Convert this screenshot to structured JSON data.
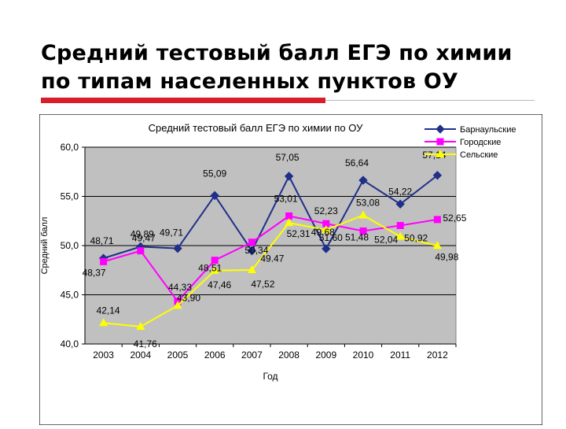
{
  "slide": {
    "title_line1": "Средний тестовый балл ЕГЭ по химии",
    "title_line2": "по типам населенных пунктов ОУ",
    "accent_color": "#d81e2a"
  },
  "chart_data": {
    "type": "line",
    "title": "Средний тестовый балл ЕГЭ по химии по ОУ",
    "xlabel": "Год",
    "ylabel": "Средний балл",
    "categories": [
      "2003",
      "2004",
      "2005",
      "2006",
      "2007",
      "2008",
      "2009",
      "2010",
      "2011",
      "2012"
    ],
    "ylim": [
      40,
      60
    ],
    "yticks": [
      40,
      45,
      50,
      55,
      60
    ],
    "ytick_labels": [
      "40,0",
      "45,0",
      "50,0",
      "55,0",
      "60,0"
    ],
    "grid": "horizontal",
    "plot_background": "#c0c0c0",
    "legend_position": "top-right",
    "series": [
      {
        "name": "Барнаульские",
        "color": "#1f2f8a",
        "marker": "diamond",
        "values": [
          48.71,
          49.89,
          49.71,
          55.09,
          49.47,
          57.05,
          49.68,
          56.64,
          54.22,
          57.14
        ],
        "labels": [
          "48,71",
          "49,89",
          "49,71",
          "55,09",
          "49.47",
          "57,05",
          "49,68",
          "56,64",
          "54,22",
          "57,14"
        ]
      },
      {
        "name": "Городские",
        "color": "#ff00ff",
        "marker": "square",
        "values": [
          48.37,
          49.47,
          44.33,
          48.51,
          50.34,
          53.01,
          52.23,
          51.48,
          52.04,
          52.65
        ],
        "labels": [
          "48,37",
          "49,47",
          "44,33",
          "48,51",
          "50,34",
          "53,01",
          "52,23",
          "51,48",
          "52,04",
          "52,65"
        ]
      },
      {
        "name": "Сельские",
        "color": "#ffff00",
        "marker": "triangle",
        "values": [
          42.14,
          41.76,
          43.9,
          47.46,
          47.52,
          52.31,
          51.6,
          53.08,
          50.92,
          49.98
        ],
        "labels": [
          "42,14",
          "41,76",
          "43,90",
          "47,46",
          "47,52",
          "52,31",
          "51,60",
          "53,08",
          "50,92",
          "49,98"
        ]
      }
    ]
  }
}
